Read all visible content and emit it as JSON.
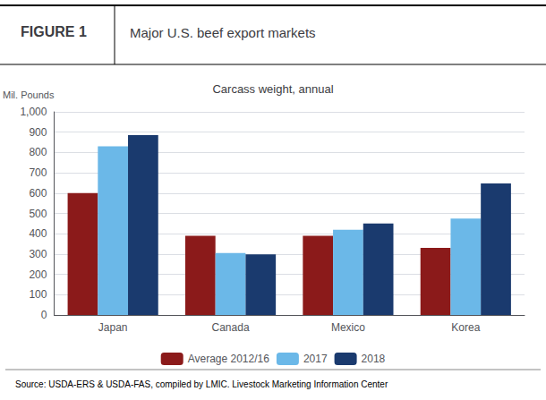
{
  "chart_data": {
    "type": "bar",
    "figure_label": "FIGURE 1",
    "title": "Major U.S. beef export markets",
    "subtitle": "Carcass weight, annual",
    "ylabel": "Mil. Pounds",
    "source": "Source: USDA-ERS & USDA-FAS, compiled by LMIC. Livestock Marketing Information Center",
    "categories": [
      "Japan",
      "Canada",
      "Mexico",
      "Korea"
    ],
    "series": [
      {
        "name": "Average 2012/16",
        "color": "#8B1A1A",
        "values": [
          600,
          390,
          390,
          330
        ]
      },
      {
        "name": "2017",
        "color": "#6BB8E8",
        "values": [
          830,
          305,
          420,
          475
        ]
      },
      {
        "name": "2018",
        "color": "#1A3A6E",
        "values": [
          885,
          298,
          450,
          648
        ]
      }
    ],
    "ylim": [
      0,
      1000
    ],
    "yticks": [
      0,
      100,
      200,
      300,
      400,
      500,
      600,
      700,
      800,
      900,
      {
        "value": 1000,
        "label": "1,000"
      }
    ],
    "grid": true,
    "legend": "bottom"
  }
}
